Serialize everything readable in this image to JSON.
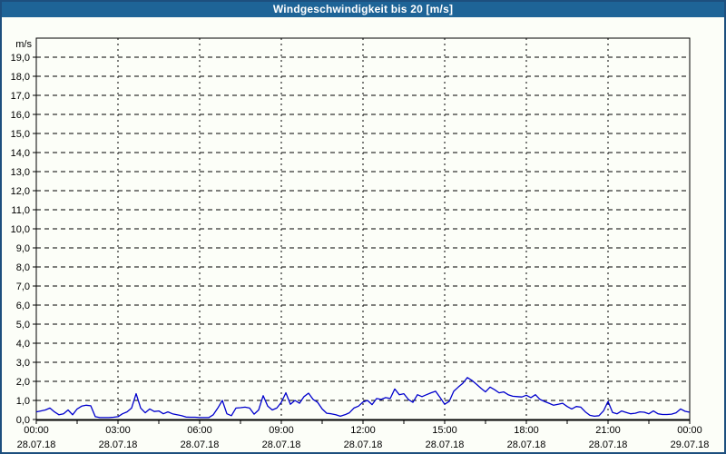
{
  "window": {
    "title": "Windgeschwindigkeit bis 20 [m/s]"
  },
  "colors": {
    "titlebar_bg": "#1e6497",
    "titlebar_text": "#ffffff",
    "frame_border": "#1d4f7e",
    "page_bg": "#fcfef8",
    "plot_bg": "#fcfef8",
    "grid": "#000000",
    "axis": "#000000",
    "label_text": "#000000",
    "line": "#0000cd"
  },
  "chart_data": {
    "type": "line",
    "title": "Windgeschwindigkeit bis 20 [m/s]",
    "ylabel": "m/s",
    "xlabel": "",
    "ylim": [
      0,
      20
    ],
    "y_tick_step": 1,
    "y_tick_labels": [
      "0,0",
      "1,0",
      "2,0",
      "3,0",
      "4,0",
      "5,0",
      "6,0",
      "7,0",
      "8,0",
      "9,0",
      "10,0",
      "11,0",
      "12,0",
      "13,0",
      "14,0",
      "15,0",
      "16,0",
      "17,0",
      "18,0",
      "19,0"
    ],
    "y_unit_label": "m/s",
    "grid": "dashed, horizontal every 1.0 m/s, vertical every 3 h",
    "legend": "none",
    "x_span_hours": 24,
    "x_major_step_hours": 3,
    "x_minor_tick_hours": 1.5,
    "x_tick_labels": [
      {
        "time": "00:00",
        "date": "28.07.18"
      },
      {
        "time": "03:00",
        "date": "28.07.18"
      },
      {
        "time": "06:00",
        "date": "28.07.18"
      },
      {
        "time": "09:00",
        "date": "28.07.18"
      },
      {
        "time": "12:00",
        "date": "28.07.18"
      },
      {
        "time": "15:00",
        "date": "28.07.18"
      },
      {
        "time": "18:00",
        "date": "28.07.18"
      },
      {
        "time": "21:00",
        "date": "28.07.18"
      },
      {
        "time": "00:00",
        "date": "29.07.18"
      }
    ],
    "series": [
      {
        "name": "Windgeschwindigkeit",
        "unit": "m/s",
        "sample_interval_min": 10,
        "start": "28.07.18 00:00",
        "end": "29.07.18 00:00",
        "values": [
          0.4,
          0.45,
          0.5,
          0.6,
          0.4,
          0.25,
          0.3,
          0.5,
          0.25,
          0.55,
          0.7,
          0.75,
          0.72,
          0.15,
          0.1,
          0.1,
          0.1,
          0.12,
          0.15,
          0.3,
          0.4,
          0.6,
          1.35,
          0.6,
          0.35,
          0.55,
          0.42,
          0.45,
          0.3,
          0.4,
          0.3,
          0.25,
          0.2,
          0.13,
          0.12,
          0.12,
          0.1,
          0.1,
          0.1,
          0.25,
          0.6,
          1.0,
          0.3,
          0.2,
          0.6,
          0.62,
          0.65,
          0.6,
          0.28,
          0.5,
          1.25,
          0.7,
          0.5,
          0.6,
          0.9,
          1.4,
          0.8,
          1.0,
          0.85,
          1.2,
          1.38,
          1.05,
          0.9,
          0.55,
          0.33,
          0.3,
          0.25,
          0.17,
          0.25,
          0.35,
          0.6,
          0.7,
          0.92,
          1.0,
          0.78,
          1.1,
          1.05,
          1.15,
          1.1,
          1.6,
          1.3,
          1.35,
          1.05,
          0.9,
          1.3,
          1.2,
          1.3,
          1.4,
          1.48,
          1.15,
          0.8,
          0.95,
          1.48,
          1.7,
          1.9,
          2.2,
          2.05,
          1.85,
          1.64,
          1.45,
          1.7,
          1.56,
          1.4,
          1.45,
          1.3,
          1.22,
          1.2,
          1.18,
          1.27,
          1.15,
          1.3,
          1.05,
          0.95,
          0.85,
          0.75,
          0.8,
          0.85,
          0.68,
          0.55,
          0.68,
          0.65,
          0.4,
          0.22,
          0.17,
          0.2,
          0.45,
          0.95,
          0.37,
          0.3,
          0.45,
          0.37,
          0.3,
          0.33,
          0.4,
          0.38,
          0.3,
          0.45,
          0.3,
          0.26,
          0.26,
          0.28,
          0.35,
          0.55,
          0.43,
          0.38
        ]
      }
    ]
  }
}
